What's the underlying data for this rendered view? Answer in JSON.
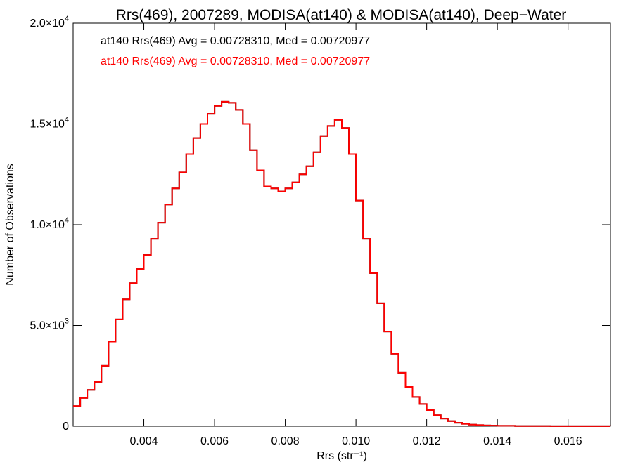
{
  "chart_data": {
    "type": "line",
    "title": "Rrs(469), 2007289, MODISA(at140) & MODISA(at140), Deep−Water",
    "xlabel": "Rrs (str⁻¹)",
    "ylabel": "Number of Observations",
    "xlim": [
      0.002,
      0.0172
    ],
    "ylim": [
      0,
      20000
    ],
    "grid": false,
    "legend_placement": "top-left",
    "x_ticks": [
      {
        "value": 0.004,
        "label": "0.004"
      },
      {
        "value": 0.006,
        "label": "0.006"
      },
      {
        "value": 0.008,
        "label": "0.008"
      },
      {
        "value": 0.01,
        "label": "0.010"
      },
      {
        "value": 0.012,
        "label": "0.012"
      },
      {
        "value": 0.014,
        "label": "0.014"
      },
      {
        "value": 0.016,
        "label": "0.016"
      }
    ],
    "y_ticks": [
      {
        "value": 0,
        "mant": "0",
        "exp": ""
      },
      {
        "value": 5000,
        "mant": "5.0×10",
        "exp": "3"
      },
      {
        "value": 10000,
        "mant": "1.0×10",
        "exp": "4"
      },
      {
        "value": 15000,
        "mant": "1.5×10",
        "exp": "4"
      },
      {
        "value": 20000,
        "mant": "2.0×10",
        "exp": "4"
      }
    ],
    "series": [
      {
        "name": "at140 Rrs(469) Avg = 0.00728310, Med = 0.00720977",
        "color": "#000000",
        "x": [
          0.002,
          0.0022,
          0.0024,
          0.0026,
          0.0028,
          0.003,
          0.0032,
          0.0034,
          0.0036,
          0.0038,
          0.004,
          0.0042,
          0.0044,
          0.0046,
          0.0048,
          0.005,
          0.0052,
          0.0054,
          0.0056,
          0.0058,
          0.006,
          0.0062,
          0.0064,
          0.0066,
          0.0068,
          0.007,
          0.0072,
          0.0074,
          0.0076,
          0.0078,
          0.008,
          0.0082,
          0.0084,
          0.0086,
          0.0088,
          0.009,
          0.0092,
          0.0094,
          0.0096,
          0.0098,
          0.01,
          0.0102,
          0.0104,
          0.0106,
          0.0108,
          0.011,
          0.0112,
          0.0114,
          0.0116,
          0.0118,
          0.012,
          0.0122,
          0.0124,
          0.0126,
          0.0128,
          0.013,
          0.0132,
          0.0134,
          0.0136,
          0.0138,
          0.014,
          0.0145,
          0.015,
          0.0155,
          0.016,
          0.0165,
          0.0172
        ],
        "y": [
          1000,
          1400,
          1800,
          2200,
          3000,
          4200,
          5300,
          6300,
          7100,
          7800,
          8500,
          9300,
          10100,
          11000,
          11800,
          12600,
          13500,
          14300,
          15000,
          15500,
          15900,
          16100,
          16050,
          15700,
          15000,
          13700,
          12700,
          11900,
          11800,
          11650,
          11800,
          12100,
          12500,
          12900,
          13600,
          14400,
          14900,
          15200,
          14800,
          13500,
          11200,
          9300,
          7600,
          6100,
          4700,
          3600,
          2650,
          1950,
          1450,
          1100,
          800,
          550,
          380,
          250,
          170,
          120,
          80,
          55,
          40,
          30,
          20,
          12,
          8,
          5,
          3,
          2,
          0
        ]
      },
      {
        "name": "at140 Rrs(469) Avg = 0.00728310, Med = 0.00720977",
        "color": "#ff0000",
        "x": [
          0.002,
          0.0022,
          0.0024,
          0.0026,
          0.0028,
          0.003,
          0.0032,
          0.0034,
          0.0036,
          0.0038,
          0.004,
          0.0042,
          0.0044,
          0.0046,
          0.0048,
          0.005,
          0.0052,
          0.0054,
          0.0056,
          0.0058,
          0.006,
          0.0062,
          0.0064,
          0.0066,
          0.0068,
          0.007,
          0.0072,
          0.0074,
          0.0076,
          0.0078,
          0.008,
          0.0082,
          0.0084,
          0.0086,
          0.0088,
          0.009,
          0.0092,
          0.0094,
          0.0096,
          0.0098,
          0.01,
          0.0102,
          0.0104,
          0.0106,
          0.0108,
          0.011,
          0.0112,
          0.0114,
          0.0116,
          0.0118,
          0.012,
          0.0122,
          0.0124,
          0.0126,
          0.0128,
          0.013,
          0.0132,
          0.0134,
          0.0136,
          0.0138,
          0.014,
          0.0145,
          0.015,
          0.0155,
          0.016,
          0.0165,
          0.0172
        ],
        "y": [
          1000,
          1400,
          1800,
          2200,
          3000,
          4200,
          5300,
          6300,
          7100,
          7800,
          8500,
          9300,
          10100,
          11000,
          11800,
          12600,
          13500,
          14300,
          15000,
          15500,
          15900,
          16100,
          16050,
          15700,
          15000,
          13700,
          12700,
          11900,
          11800,
          11650,
          11800,
          12100,
          12500,
          12900,
          13600,
          14400,
          14900,
          15200,
          14800,
          13500,
          11200,
          9300,
          7600,
          6100,
          4700,
          3600,
          2650,
          1950,
          1450,
          1100,
          800,
          550,
          380,
          250,
          170,
          120,
          80,
          55,
          40,
          30,
          20,
          12,
          8,
          5,
          3,
          2,
          0
        ]
      }
    ]
  }
}
